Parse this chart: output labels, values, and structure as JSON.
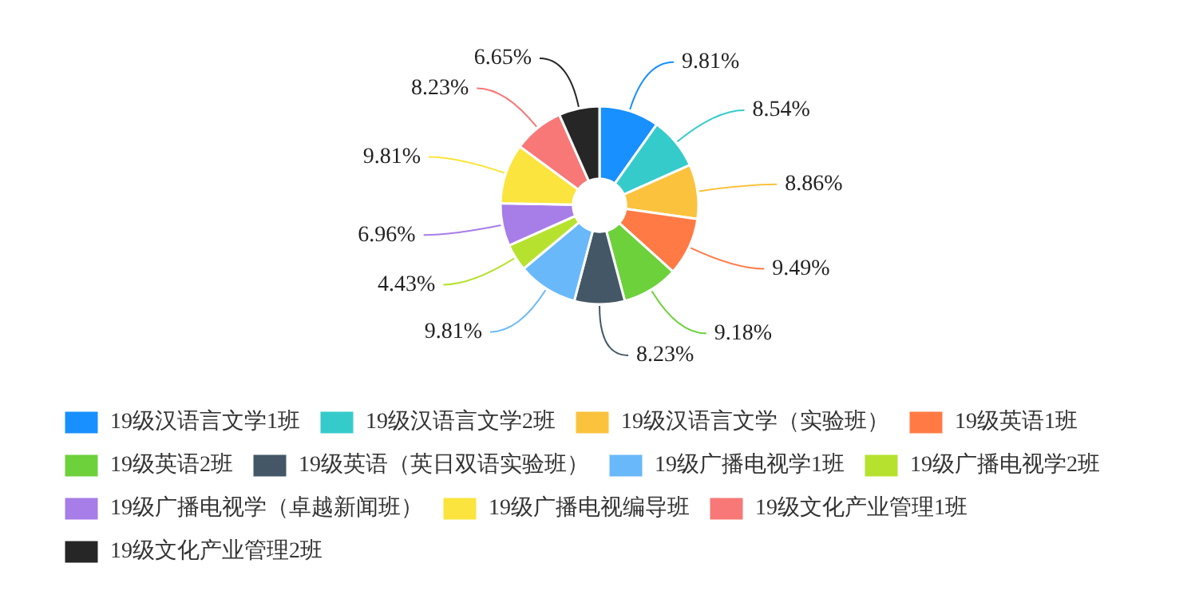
{
  "chart_data": {
    "type": "donut",
    "categories": [
      "19级汉语言文学1班",
      "19级汉语言文学2班",
      "19级汉语言文学（实验班）",
      "19级英语1班",
      "19级英语2班",
      "19级英语（英日双语实验班）",
      "19级广播电视学1班",
      "19级广播电视学2班",
      "19级广播电视学（卓越新闻班）",
      "19级广播电视编导班",
      "19级文化产业管理1班",
      "19级文化产业管理2班"
    ],
    "values": [
      9.81,
      8.54,
      8.86,
      9.49,
      9.18,
      8.23,
      9.81,
      4.43,
      6.96,
      9.81,
      8.23,
      6.65
    ],
    "value_labels": [
      "9.81%",
      "8.54%",
      "8.86%",
      "9.49%",
      "9.18%",
      "8.23%",
      "9.81%",
      "4.43%",
      "6.96%",
      "9.81%",
      "8.23%",
      "6.65%"
    ],
    "colors": [
      "#1890ff",
      "#36cbcb",
      "#fbc23d",
      "#ff7a45",
      "#6dd13b",
      "#435766",
      "#69b9fa",
      "#b6e22f",
      "#a77de8",
      "#fbe43d",
      "#f87878",
      "#262626"
    ],
    "legend": "bottom left"
  }
}
